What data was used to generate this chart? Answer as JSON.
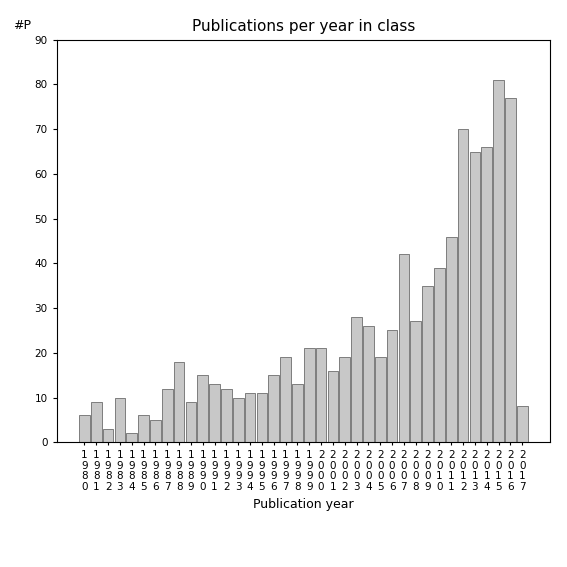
{
  "title": "Publications per year in class",
  "xlabel": "Publication year",
  "ylabel": "#P",
  "years": [
    1980,
    1981,
    1982,
    1983,
    1984,
    1985,
    1986,
    1987,
    1988,
    1989,
    1990,
    1991,
    1992,
    1993,
    1994,
    1995,
    1996,
    1997,
    1998,
    1999,
    2000,
    2001,
    2002,
    2003,
    2004,
    2005,
    2006,
    2007,
    2008,
    2009,
    2010,
    2011,
    2012,
    2013,
    2014,
    2015,
    2016,
    2017
  ],
  "values": [
    6,
    9,
    3,
    10,
    2,
    6,
    5,
    12,
    18,
    9,
    15,
    13,
    12,
    10,
    11,
    11,
    15,
    19,
    13,
    21,
    21,
    16,
    19,
    28,
    26,
    19,
    25,
    42,
    27,
    35,
    39,
    46,
    70,
    65,
    66,
    81,
    77,
    8
  ],
  "bar_color": "#c8c8c8",
  "bar_edge_color": "#555555",
  "ylim": [
    0,
    90
  ],
  "yticks": [
    0,
    10,
    20,
    30,
    40,
    50,
    60,
    70,
    80,
    90
  ],
  "bg_color": "#ffffff",
  "title_fontsize": 11,
  "label_fontsize": 9,
  "tick_fontsize": 7.5
}
